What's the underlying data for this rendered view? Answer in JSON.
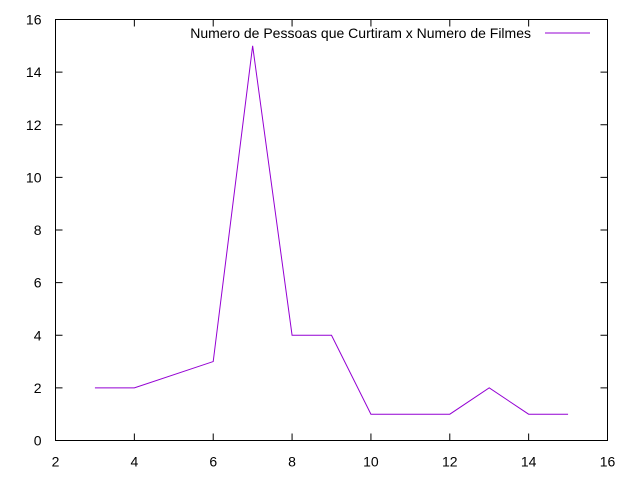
{
  "chart_data": {
    "type": "line",
    "title": "",
    "xlabel": "",
    "ylabel": "",
    "xlim": [
      2,
      16
    ],
    "ylim": [
      0,
      16
    ],
    "xticks": [
      2,
      4,
      6,
      8,
      10,
      12,
      14,
      16
    ],
    "yticks": [
      0,
      2,
      4,
      6,
      8,
      10,
      12,
      14,
      16
    ],
    "grid": false,
    "legend_position": "top-right",
    "series": [
      {
        "name": "Numero de Pessoas que Curtiram x Numero de Filmes",
        "color": "#9400d3",
        "x": [
          3,
          4,
          6,
          7,
          8,
          9,
          10,
          11,
          12,
          13,
          14,
          15
        ],
        "y": [
          2,
          2,
          3,
          15,
          4,
          4,
          1,
          1,
          1,
          2,
          1,
          1
        ]
      }
    ]
  }
}
